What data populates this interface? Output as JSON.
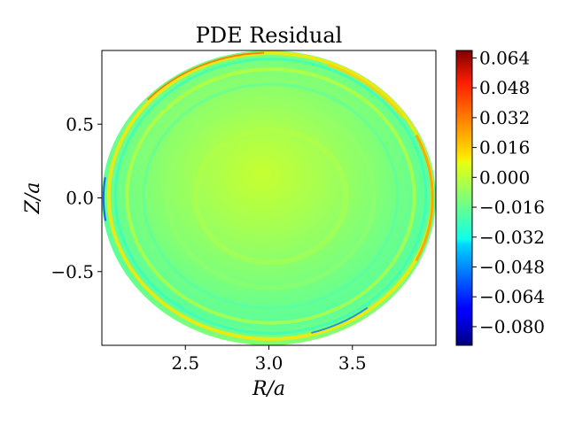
{
  "chart_data": {
    "type": "heatmap",
    "title": "PDE Residual",
    "xlabel": "R/a",
    "ylabel": "Z/a",
    "xlim": [
      2.0,
      4.0
    ],
    "ylim": [
      -1.0,
      1.0
    ],
    "x_ticks": [
      2.5,
      3.0,
      3.5
    ],
    "x_tick_labels": [
      "2.5",
      "3.0",
      "3.5"
    ],
    "y_ticks": [
      0.5,
      0.0,
      -0.5
    ],
    "y_tick_labels": [
      "0.5",
      "0.0",
      "−0.5"
    ],
    "domain_shape": "circle",
    "domain_center": [
      3.0,
      0.0
    ],
    "domain_radius": 1.0,
    "colormap": "jet",
    "colorbar": {
      "min": -0.09,
      "max": 0.068,
      "ticks": [
        0.064,
        0.048,
        0.032,
        0.016,
        0.0,
        -0.016,
        -0.032,
        -0.048,
        -0.064,
        -0.08
      ],
      "tick_labels": [
        "0.064",
        "0.048",
        "0.032",
        "0.016",
        "0.000",
        "−0.016",
        "−0.032",
        "−0.048",
        "−0.064",
        "−0.080"
      ]
    }
  }
}
